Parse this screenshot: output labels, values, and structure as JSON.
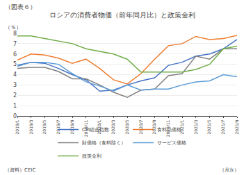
{
  "chart_data": {
    "type": "line",
    "title": "ロシアの消費者物価（前年同月比）と政策金利",
    "ylabel": "（％）",
    "annotations": [
      "（図表６）",
      "（資料）CEIC",
      "（月次）"
    ],
    "categories": [
      "2019/1",
      "2019/3",
      "2019/5",
      "2019/7",
      "2019/9",
      "2019/11",
      "2020/1",
      "2020/3",
      "2020/5",
      "2020/7",
      "2020/9",
      "2020/11",
      "2021/1",
      "2021/3",
      "2021/5",
      "2021/7",
      "2021/9"
    ],
    "series": [
      {
        "name": "CPI総合指数",
        "color": "#4472c4",
        "values": [
          4.9,
          5.2,
          5.1,
          4.6,
          4.0,
          3.5,
          2.4,
          2.5,
          3.0,
          3.4,
          3.7,
          4.9,
          5.2,
          5.8,
          6.0,
          6.5,
          7.4
        ]
      },
      {
        "name": "食料品価格",
        "color": "#ed7d31",
        "values": [
          5.4,
          6.0,
          5.9,
          5.6,
          5.1,
          5.5,
          4.6,
          3.5,
          3.1,
          4.1,
          5.5,
          6.8,
          7.0,
          7.7,
          7.4,
          7.5,
          7.8
        ]
      },
      {
        "name": "財価格（食料除く）",
        "color": "#808080",
        "values": [
          4.6,
          4.7,
          4.7,
          4.3,
          3.6,
          3.6,
          3.0,
          2.3,
          1.8,
          2.5,
          2.6,
          3.9,
          4.1,
          5.8,
          5.5,
          6.5,
          6.5
        ]
      },
      {
        "name": "サービス価格",
        "color": "#5b9bd5",
        "values": [
          4.8,
          5.2,
          5.2,
          5.0,
          4.1,
          3.3,
          2.9,
          2.4,
          3.0,
          2.5,
          2.6,
          2.6,
          3.0,
          3.3,
          3.4,
          4.0,
          3.8
        ]
      },
      {
        "name": "政策金利",
        "color": "#70ad47",
        "values": [
          7.75,
          7.75,
          7.5,
          7.25,
          7.0,
          6.5,
          6.25,
          6.0,
          5.5,
          4.25,
          4.25,
          4.25,
          4.25,
          4.5,
          5.0,
          6.5,
          6.75
        ]
      }
    ],
    "ylim": [
      0,
      8
    ],
    "yticks": [
      0,
      1,
      2,
      3,
      4,
      5,
      6,
      7,
      8
    ],
    "grid": true,
    "legend": "bottom"
  }
}
